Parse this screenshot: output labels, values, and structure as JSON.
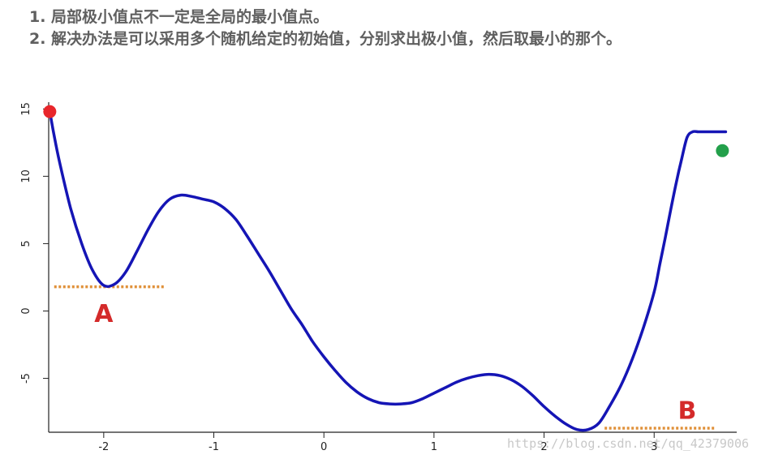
{
  "notes": {
    "line1": "1. 局部极小值点不一定是全局的最小值点。",
    "line2": "2. 解决办法是可以采用多个随机给定的初始值，分别求出极小值，然后取最小的那个。"
  },
  "chart_data": {
    "type": "line",
    "xlim": [
      -2.5,
      3.75
    ],
    "ylim": [
      -9,
      15.5
    ],
    "xticks": [
      -2,
      -1,
      0,
      1,
      2,
      3
    ],
    "xtick_labels": [
      "-2",
      "-1",
      "0",
      "1",
      "2",
      "3"
    ],
    "yticks": [
      -5,
      0,
      5,
      10,
      15
    ],
    "ytick_labels": [
      "-5",
      "0",
      "5",
      "10",
      "15"
    ],
    "grid": false,
    "series": [
      {
        "color": "#1515b5",
        "x": [
          -2.49,
          -2.45,
          -2.4,
          -2.3,
          -2.2,
          -2.1,
          -2.0,
          -1.9,
          -1.8,
          -1.7,
          -1.6,
          -1.5,
          -1.4,
          -1.3,
          -1.2,
          -1.1,
          -1.0,
          -0.9,
          -0.8,
          -0.7,
          -0.6,
          -0.5,
          -0.4,
          -0.3,
          -0.2,
          -0.1,
          0.0,
          0.1,
          0.2,
          0.3,
          0.4,
          0.5,
          0.6,
          0.7,
          0.8,
          0.9,
          1.0,
          1.1,
          1.2,
          1.3,
          1.4,
          1.5,
          1.6,
          1.7,
          1.8,
          1.9,
          2.0,
          2.1,
          2.2,
          2.3,
          2.4,
          2.5,
          2.6,
          2.7,
          2.8,
          2.9,
          3.0,
          3.05,
          3.1,
          3.15,
          3.2,
          3.25,
          3.3,
          3.35,
          3.4,
          3.45,
          3.5,
          3.55,
          3.6,
          3.65
        ],
        "y": [
          14.8,
          13.0,
          11.0,
          7.6,
          5.0,
          3.0,
          1.9,
          2.0,
          2.9,
          4.4,
          6.0,
          7.4,
          8.3,
          8.6,
          8.5,
          8.3,
          8.1,
          7.6,
          6.8,
          5.6,
          4.3,
          3.0,
          1.6,
          0.2,
          -1.0,
          -2.3,
          -3.4,
          -4.4,
          -5.3,
          -6.0,
          -6.5,
          -6.8,
          -6.9,
          -6.9,
          -6.8,
          -6.5,
          -6.1,
          -5.7,
          -5.3,
          -5.0,
          -4.8,
          -4.7,
          -4.8,
          -5.1,
          -5.6,
          -6.3,
          -7.1,
          -7.8,
          -8.4,
          -8.8,
          -8.8,
          -8.3,
          -7.0,
          -5.5,
          -3.6,
          -1.3,
          1.4,
          3.4,
          5.4,
          7.5,
          9.5,
          11.3,
          12.9,
          13.3,
          13.3,
          13.3,
          13.3,
          13.3,
          13.3,
          13.3
        ]
      }
    ],
    "points": [
      {
        "x": -2.49,
        "y": 14.8,
        "color": "#e8262b"
      },
      {
        "x": 3.62,
        "y": 11.9,
        "color": "#23a04b"
      }
    ],
    "annotations": [
      {
        "text": "A",
        "x": -2.0,
        "y": -0.3,
        "color": "#d42a2a"
      },
      {
        "text": "B",
        "x": 3.3,
        "y": -7.5,
        "color": "#d42a2a"
      }
    ],
    "reference_lines": [
      {
        "label": "A",
        "y": 1.8,
        "x_from": -2.45,
        "x_to": -1.45,
        "color": "#e0913a"
      },
      {
        "label": "B",
        "y": -8.7,
        "x_from": 2.55,
        "x_to": 3.55,
        "color": "#e0913a"
      }
    ]
  },
  "watermark": "https://blog.csdn.net/qq_42379006"
}
